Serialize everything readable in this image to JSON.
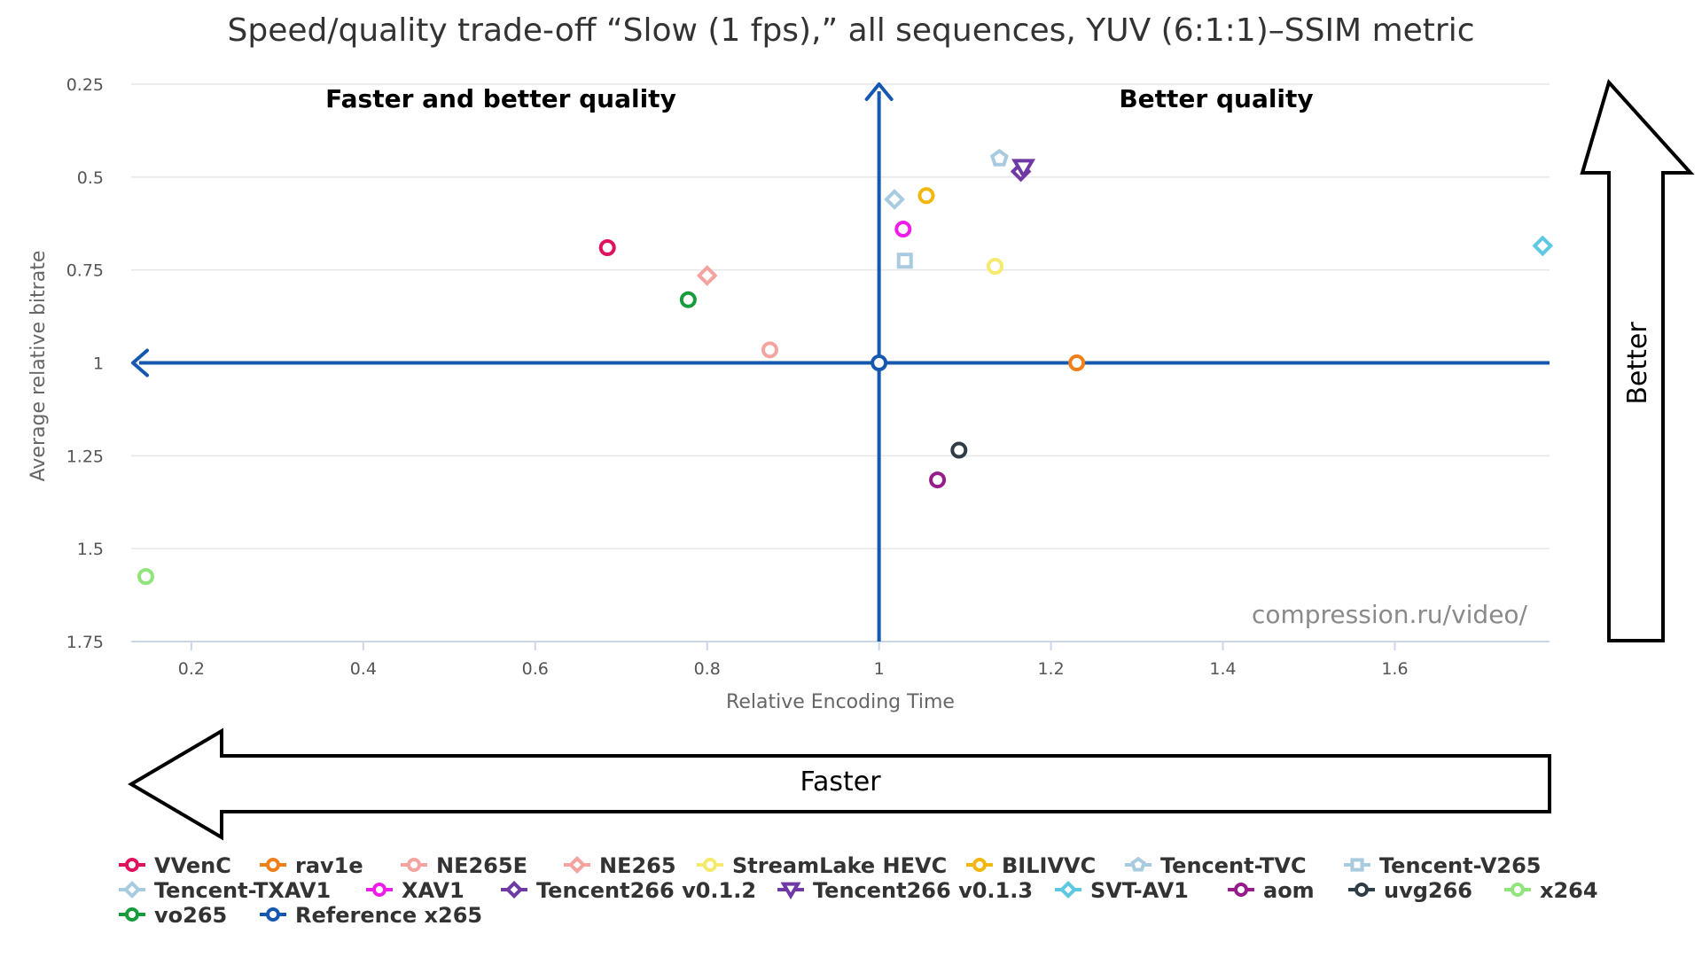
{
  "chart_data": {
    "type": "scatter",
    "title": "Speed/quality trade-off “Slow (1 fps),” all sequences, YUV (6:1:1)–SSIM metric",
    "xlabel": "Relative Encoding Time",
    "ylabel": "Average relative bitrate",
    "xlim": [
      0.13,
      1.78
    ],
    "ylim": [
      1.75,
      0.25
    ],
    "y_inverted": true,
    "x_ticks": [
      "0.2",
      "0.4",
      "0.6",
      "0.8",
      "1",
      "1.2",
      "1.4",
      "1.6"
    ],
    "y_ticks": [
      "0.25",
      "0.5",
      "0.75",
      "1",
      "1.25",
      "1.5",
      "1.75"
    ],
    "grid": "horizontal",
    "legend_position": "bottom",
    "quadrant_labels": {
      "top_left": "Faster and better quality",
      "top_right": "Better quality"
    },
    "arrows": {
      "faster": "Faster",
      "better": "Better"
    },
    "watermark": "compression.ru/video/",
    "reference": {
      "x": 1.0,
      "y": 1.0
    },
    "series": [
      {
        "name": "VVenC",
        "color": "#e0115f",
        "marker": "circle",
        "x": 0.684,
        "y": 0.69
      },
      {
        "name": "rav1e",
        "color": "#f07f1a",
        "marker": "circle",
        "x": 1.23,
        "y": 1.0
      },
      {
        "name": "NE265E",
        "color": "#f4a3a0",
        "marker": "circle",
        "x": 0.873,
        "y": 0.965
      },
      {
        "name": "NE265",
        "color": "#f4a3a0",
        "marker": "diamond",
        "x": 0.8,
        "y": 0.765
      },
      {
        "name": "StreamLake HEVC",
        "color": "#f5ea6e",
        "marker": "circle",
        "x": 1.135,
        "y": 0.74
      },
      {
        "name": "BILIVVC",
        "color": "#f2b70f",
        "marker": "circle",
        "x": 1.055,
        "y": 0.55
      },
      {
        "name": "Tencent-TVC",
        "color": "#a9cbe0",
        "marker": "pentagon",
        "x": 1.14,
        "y": 0.45
      },
      {
        "name": "Tencent-V265",
        "color": "#a9cbe0",
        "marker": "square",
        "x": 1.03,
        "y": 0.725
      },
      {
        "name": "Tencent-TXAV1",
        "color": "#a9cbe0",
        "marker": "diamond",
        "x": 1.018,
        "y": 0.56
      },
      {
        "name": "XAV1",
        "color": "#ee1ee8",
        "marker": "circle",
        "x": 1.028,
        "y": 0.64
      },
      {
        "name": "Tencent266 v0.1.2",
        "color": "#6f3aa4",
        "marker": "diamond",
        "x": 1.165,
        "y": 0.485
      },
      {
        "name": "Tencent266 v0.1.3",
        "color": "#6f3aa4",
        "marker": "triangle-down",
        "x": 1.168,
        "y": 0.475
      },
      {
        "name": "SVT-AV1",
        "color": "#5cc8e2",
        "marker": "diamond",
        "x": 1.772,
        "y": 0.685
      },
      {
        "name": "aom",
        "color": "#951c8a",
        "marker": "circle",
        "x": 1.068,
        "y": 1.315
      },
      {
        "name": "uvg266",
        "color": "#2f3e46",
        "marker": "circle",
        "x": 1.093,
        "y": 1.235
      },
      {
        "name": "x264",
        "color": "#8fe57a",
        "marker": "circle",
        "x": 0.147,
        "y": 1.575
      },
      {
        "name": "vo265",
        "color": "#169c3c",
        "marker": "circle",
        "x": 0.778,
        "y": 0.83
      },
      {
        "name": "Reference x265",
        "color": "#1658b0",
        "marker": "circle",
        "x": 1.0,
        "y": 1.0
      }
    ]
  }
}
